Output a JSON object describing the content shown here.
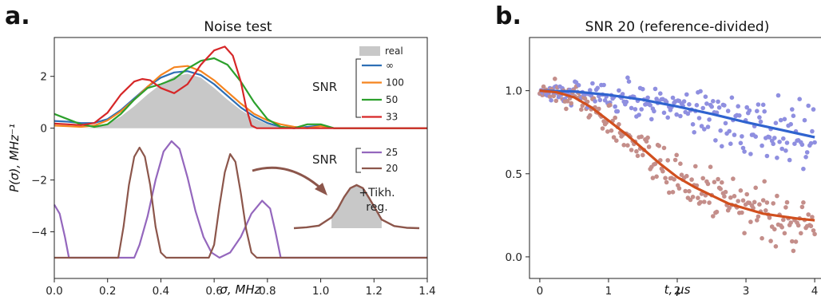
{
  "chart_data": [
    {
      "panel_label": "a.",
      "type": "line",
      "title": "Noise test",
      "xlabel": "σ, MHz",
      "ylabel": "P(σ), MHz⁻¹",
      "xlim": [
        0.0,
        1.4
      ],
      "ylim": [
        -5.8,
        3.5
      ],
      "xticks": [
        "0.0",
        "0.2",
        "0.4",
        "0.6",
        "0.8",
        "1.0",
        "1.2",
        "1.4"
      ],
      "xtick_values": [
        0.0,
        0.2,
        0.4,
        0.6,
        0.8,
        1.0,
        1.2,
        1.4
      ],
      "yticks": [
        "−4",
        "−2",
        "0",
        "2"
      ],
      "ytick_values": [
        -4,
        -2,
        0,
        2
      ],
      "legend": {
        "title": "SNR",
        "placement": "right",
        "fill_label": "real",
        "entries_top": [
          "∞",
          "100",
          "50",
          "33"
        ],
        "entries_bottom": [
          "25",
          "20"
        ]
      },
      "annotation": {
        "line1": "+Tikh.",
        "line2": "reg."
      },
      "inset": {
        "x": [
          0,
          0.1,
          0.2,
          0.3,
          0.35,
          0.4,
          0.45,
          0.5,
          0.55,
          0.6,
          0.65,
          0.7,
          0.8,
          0.9,
          1.0
        ],
        "y": [
          0,
          0.02,
          0.06,
          0.25,
          0.45,
          0.72,
          0.93,
          1.0,
          0.93,
          0.7,
          0.45,
          0.2,
          0.05,
          0.01,
          0
        ]
      },
      "series": [
        {
          "name": "real",
          "style": "fill",
          "color": "#c8c8c8",
          "x": [
            0.0,
            0.1,
            0.15,
            0.2,
            0.25,
            0.3,
            0.35,
            0.4,
            0.45,
            0.5,
            0.55,
            0.6,
            0.65,
            0.7,
            0.75,
            0.8,
            0.85,
            0.9,
            1.0,
            1.4
          ],
          "y": [
            0,
            0,
            0.02,
            0.15,
            0.45,
            0.85,
            1.3,
            1.7,
            2.0,
            2.1,
            1.95,
            1.55,
            1.1,
            0.7,
            0.38,
            0.15,
            0.05,
            0,
            0,
            0
          ]
        },
        {
          "name": "∞",
          "color": "#2e6fb5",
          "x": [
            0.0,
            0.05,
            0.1,
            0.15,
            0.2,
            0.25,
            0.3,
            0.35,
            0.4,
            0.45,
            0.5,
            0.55,
            0.6,
            0.65,
            0.7,
            0.75,
            0.8,
            0.85,
            0.9,
            0.95,
            1.0,
            1.05,
            1.4
          ],
          "y": [
            0.28,
            0.25,
            0.2,
            0.2,
            0.35,
            0.7,
            1.15,
            1.6,
            1.95,
            2.15,
            2.2,
            2.05,
            1.7,
            1.25,
            0.8,
            0.45,
            0.2,
            0.05,
            0.0,
            0.05,
            0.1,
            0,
            0
          ]
        },
        {
          "name": "100",
          "color": "#f5841f",
          "x": [
            0.0,
            0.05,
            0.1,
            0.15,
            0.2,
            0.25,
            0.3,
            0.35,
            0.4,
            0.45,
            0.5,
            0.55,
            0.6,
            0.65,
            0.7,
            0.75,
            0.8,
            0.85,
            0.9,
            0.95,
            1.0,
            1.05,
            1.4
          ],
          "y": [
            0.1,
            0.08,
            0.05,
            0.1,
            0.3,
            0.65,
            1.1,
            1.6,
            2.05,
            2.35,
            2.4,
            2.2,
            1.85,
            1.4,
            0.95,
            0.55,
            0.3,
            0.15,
            0.05,
            0.0,
            0.08,
            0,
            0
          ]
        },
        {
          "name": "50",
          "color": "#2ca02c",
          "x": [
            0.0,
            0.05,
            0.1,
            0.15,
            0.2,
            0.25,
            0.3,
            0.35,
            0.4,
            0.45,
            0.5,
            0.55,
            0.6,
            0.65,
            0.7,
            0.75,
            0.8,
            0.85,
            0.9,
            0.95,
            1.0,
            1.05,
            1.4
          ],
          "y": [
            0.55,
            0.35,
            0.15,
            0.05,
            0.15,
            0.55,
            1.1,
            1.55,
            1.7,
            1.9,
            2.3,
            2.6,
            2.7,
            2.45,
            1.8,
            1.0,
            0.35,
            0.05,
            0.0,
            0.15,
            0.15,
            0,
            0
          ]
        },
        {
          "name": "33",
          "color": "#d62728",
          "x": [
            0.0,
            0.05,
            0.1,
            0.15,
            0.2,
            0.25,
            0.3,
            0.33,
            0.36,
            0.4,
            0.45,
            0.5,
            0.55,
            0.6,
            0.64,
            0.67,
            0.7,
            0.72,
            0.74,
            0.76,
            1.4
          ],
          "y": [
            0.18,
            0.15,
            0.12,
            0.2,
            0.6,
            1.3,
            1.8,
            1.9,
            1.85,
            1.55,
            1.35,
            1.7,
            2.45,
            3.0,
            3.15,
            2.8,
            1.8,
            0.8,
            0.1,
            0,
            0
          ]
        },
        {
          "name": "25",
          "color": "#9467bd",
          "x": [
            0.0,
            0.02,
            0.04,
            0.055,
            0.3,
            0.32,
            0.35,
            0.38,
            0.41,
            0.44,
            0.47,
            0.5,
            0.53,
            0.56,
            0.59,
            0.62,
            0.66,
            0.7,
            0.74,
            0.78,
            0.81,
            0.83,
            0.85,
            1.4
          ],
          "y": [
            -2.95,
            -3.3,
            -4.2,
            -5.0,
            -5.0,
            -4.5,
            -3.4,
            -2.0,
            -0.9,
            -0.5,
            -0.8,
            -1.9,
            -3.2,
            -4.2,
            -4.8,
            -5.0,
            -4.8,
            -4.2,
            -3.3,
            -2.8,
            -3.1,
            -4.0,
            -5.0,
            -5.0
          ]
        },
        {
          "name": "20",
          "color": "#8c564b",
          "x": [
            0.0,
            0.24,
            0.26,
            0.28,
            0.3,
            0.32,
            0.34,
            0.36,
            0.38,
            0.4,
            0.42,
            0.58,
            0.6,
            0.62,
            0.64,
            0.66,
            0.68,
            0.7,
            0.72,
            0.74,
            0.76,
            1.4
          ],
          "y": [
            -5.0,
            -5.0,
            -3.8,
            -2.2,
            -1.1,
            -0.75,
            -1.1,
            -2.2,
            -3.8,
            -4.8,
            -5.0,
            -5.0,
            -4.5,
            -3.0,
            -1.7,
            -1.0,
            -1.3,
            -2.5,
            -3.9,
            -4.8,
            -5.0,
            -5.0
          ]
        }
      ]
    },
    {
      "panel_label": "b.",
      "type": "scatter",
      "title": "SNR 20 (reference-divided)",
      "xlabel": "t, μs",
      "ylabel": "",
      "xlim": [
        -0.15,
        4.15
      ],
      "ylim": [
        -0.13,
        1.32
      ],
      "xticks": [
        "0",
        "1",
        "2",
        "3",
        "4"
      ],
      "xtick_values": [
        0,
        1,
        2,
        3,
        4
      ],
      "yticks": [
        "0.0",
        "0.5",
        "1.0"
      ],
      "ytick_values": [
        0.0,
        0.5,
        1.0
      ],
      "scatter_colors": [
        "#8f8fe0",
        "#c48e8a"
      ],
      "series": [
        {
          "style": "fit",
          "color": "#2f63cf",
          "x": [
            0,
            0.5,
            1.0,
            1.5,
            2.0,
            2.5,
            3.0,
            3.5,
            4.0
          ],
          "y": [
            1.0,
            0.995,
            0.975,
            0.945,
            0.905,
            0.86,
            0.81,
            0.765,
            0.72
          ]
        },
        {
          "style": "fit",
          "color": "#d14f1e",
          "x": [
            0,
            0.25,
            0.5,
            0.75,
            1.0,
            1.25,
            1.5,
            1.75,
            2.0,
            2.25,
            2.5,
            2.75,
            3.0,
            3.25,
            3.5,
            3.75,
            4.0
          ],
          "y": [
            1.0,
            0.99,
            0.96,
            0.9,
            0.82,
            0.74,
            0.65,
            0.56,
            0.48,
            0.42,
            0.37,
            0.32,
            0.29,
            0.26,
            0.245,
            0.23,
            0.22
          ]
        }
      ]
    }
  ]
}
